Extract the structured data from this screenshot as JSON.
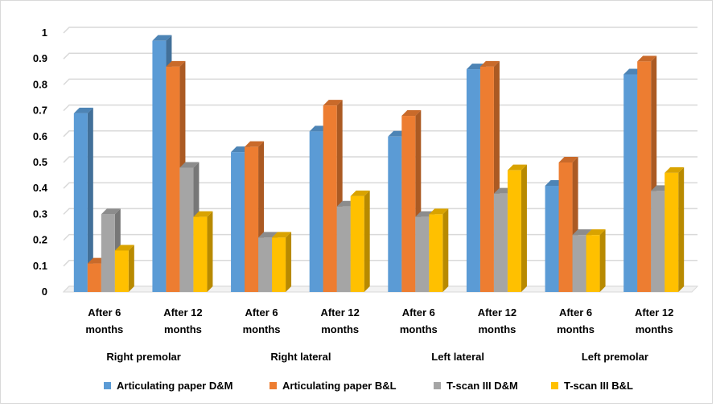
{
  "chart_data": {
    "type": "bar",
    "title": "",
    "xlabel": "",
    "ylabel": "",
    "ylim": [
      0,
      1
    ],
    "yticks": [
      "0",
      "0.1",
      "0.2",
      "0.3",
      "0.4",
      "0.5",
      "0.6",
      "0.7",
      "0.8",
      "0.9",
      "1"
    ],
    "grid": true,
    "legend_position": "bottom",
    "categories": [
      {
        "line1": "After 6",
        "line2": "months"
      },
      {
        "line1": "After 12",
        "line2": "months"
      },
      {
        "line1": "After 6",
        "line2": "months"
      },
      {
        "line1": "After 12",
        "line2": "months"
      },
      {
        "line1": "After 6",
        "line2": "months"
      },
      {
        "line1": "After 12",
        "line2": "months"
      },
      {
        "line1": "After 6",
        "line2": "months"
      },
      {
        "line1": "After 12",
        "line2": "months"
      }
    ],
    "groups": [
      "Right premolar",
      "Right lateral",
      "Left lateral",
      "Left premolar"
    ],
    "series": [
      {
        "name": "Articulating  paper  D&M",
        "color": "#5b9bd5",
        "values": [
          0.69,
          0.97,
          0.54,
          0.62,
          0.6,
          0.86,
          0.41,
          0.84
        ]
      },
      {
        "name": "Articulating paper B&L",
        "color": "#ed7d31",
        "values": [
          0.11,
          0.87,
          0.56,
          0.72,
          0.68,
          0.87,
          0.5,
          0.89
        ]
      },
      {
        "name": "T-scan III D&M",
        "color": "#a5a5a5",
        "values": [
          0.3,
          0.48,
          0.21,
          0.33,
          0.29,
          0.38,
          0.22,
          0.39
        ]
      },
      {
        "name": "T-scan III B&L",
        "color": "#ffc000",
        "values": [
          0.16,
          0.29,
          0.21,
          0.37,
          0.3,
          0.47,
          0.22,
          0.46
        ]
      }
    ]
  }
}
